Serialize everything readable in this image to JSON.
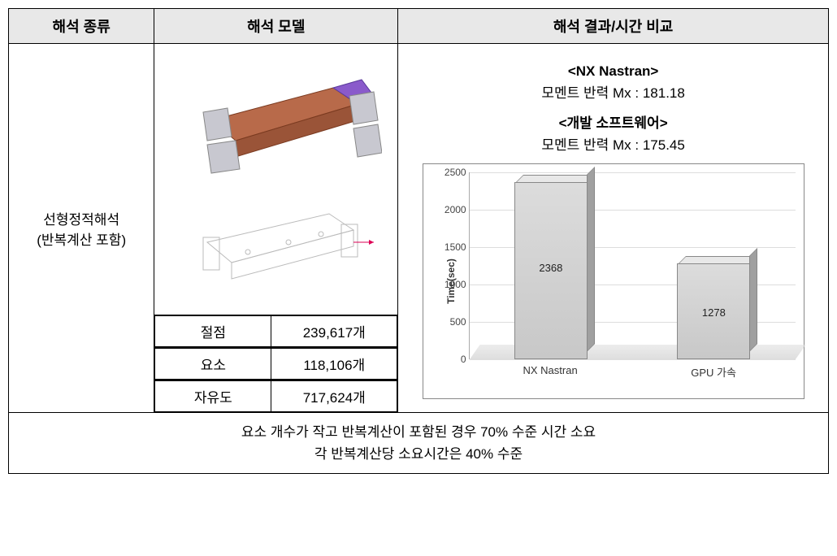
{
  "headers": {
    "col1": "해석 종류",
    "col2": "해석 모델",
    "col3": "해석 결과/시간 비교"
  },
  "analysis_type": {
    "line1": "선형정적해석",
    "line2": "(반복계산 포함)"
  },
  "model_stats": {
    "rows": [
      {
        "label": "절점",
        "value": "239,617개"
      },
      {
        "label": "요소",
        "value": "118,106개"
      },
      {
        "label": "자유도",
        "value": "717,624개"
      }
    ]
  },
  "results": {
    "heading1": "<NX Nastran>",
    "line1": "모멘트 반력 Mx : 181.18",
    "heading2": "<개발 소프트웨어>",
    "line2": "모멘트 반력 Mx : 175.45"
  },
  "chart": {
    "type": "bar",
    "y_label": "Time(sec)",
    "y_max": 2500,
    "y_ticks": [
      0,
      500,
      1000,
      1500,
      2000,
      2500
    ],
    "categories": [
      "NX Nastran",
      "GPU 가속"
    ],
    "values": [
      2368,
      1278
    ],
    "bar_color": "#c8c8c8",
    "bar_border": "#888888",
    "grid_color": "#dddddd",
    "background_color": "#ffffff",
    "label_fontsize": 13
  },
  "summary": {
    "line1": "요소 개수가 작고 반복계산이 포함된 경우 70% 수준 시간 소요",
    "line2": "각 반복계산당 소요시간은 40% 수준"
  }
}
